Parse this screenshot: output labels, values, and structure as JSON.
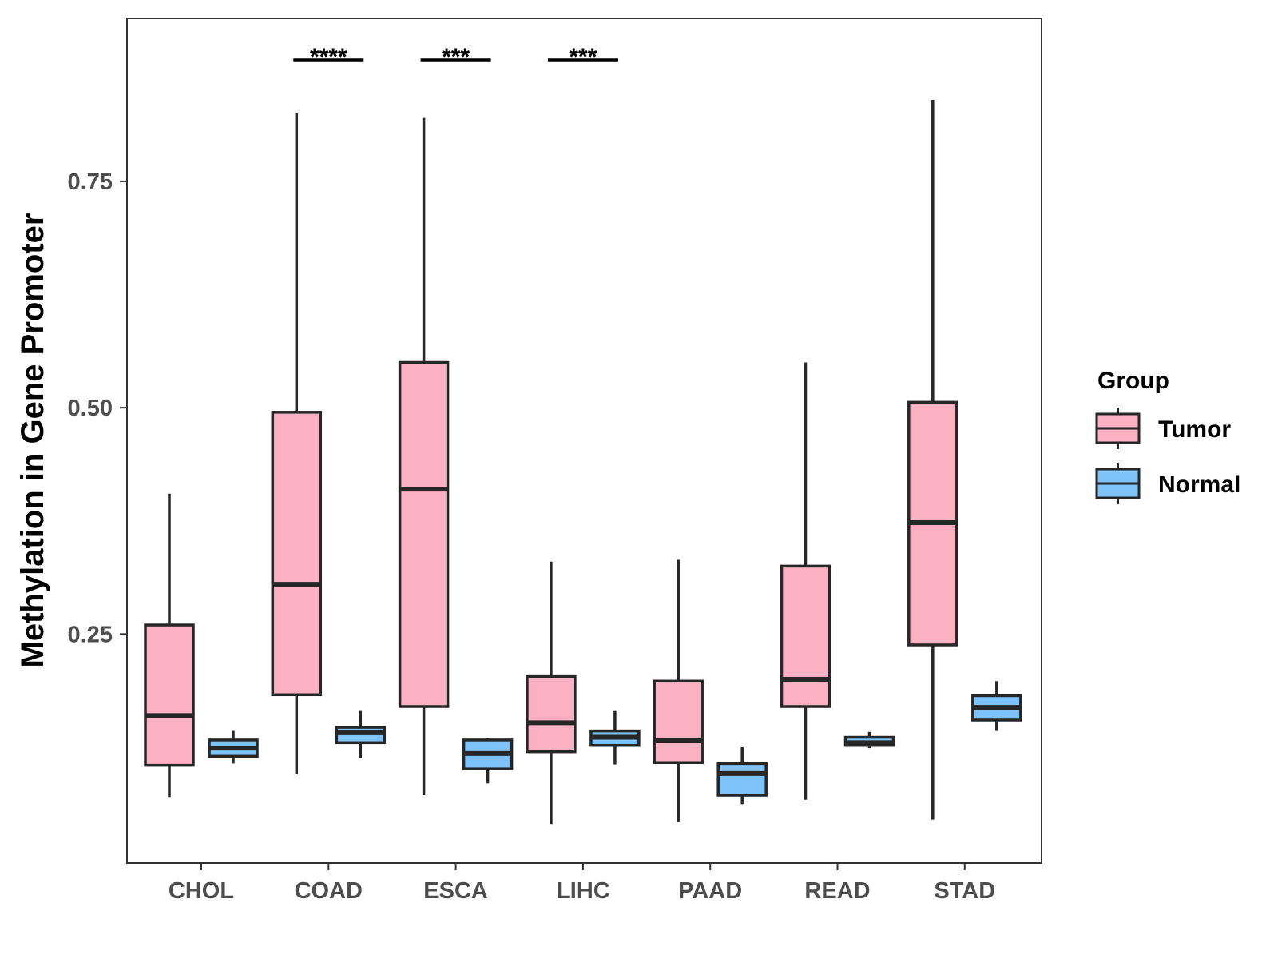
{
  "chart_data": {
    "type": "boxplot",
    "title": "",
    "xlabel": "",
    "ylabel": "Methylation in Gene Promoter",
    "ylim": [
      -0.003,
      0.93
    ],
    "y_ticks": [
      0.25,
      0.5,
      0.75
    ],
    "y_tick_labels": [
      "0.25",
      "0.50",
      "0.75"
    ],
    "categories": [
      "CHOL",
      "COAD",
      "ESCA",
      "LIHC",
      "PAAD",
      "READ",
      "STAD"
    ],
    "grid": false,
    "legend": {
      "title": "Group",
      "position": "right",
      "entries": [
        {
          "name": "Tumor",
          "color": "#FBB1C3"
        },
        {
          "name": "Normal",
          "color": "#7DC2F8"
        }
      ]
    },
    "series": [
      {
        "name": "Tumor",
        "color": "#FBB1C3",
        "boxes": [
          {
            "category": "CHOL",
            "whisker_low": 0.07,
            "q1": 0.105,
            "median": 0.16,
            "q3": 0.26,
            "whisker_high": 0.405
          },
          {
            "category": "COAD",
            "whisker_low": 0.095,
            "q1": 0.183,
            "median": 0.305,
            "q3": 0.495,
            "whisker_high": 0.825
          },
          {
            "category": "ESCA",
            "whisker_low": 0.072,
            "q1": 0.17,
            "median": 0.41,
            "q3": 0.55,
            "whisker_high": 0.82
          },
          {
            "category": "LIHC",
            "whisker_low": 0.04,
            "q1": 0.12,
            "median": 0.152,
            "q3": 0.203,
            "whisker_high": 0.33
          },
          {
            "category": "PAAD",
            "whisker_low": 0.043,
            "q1": 0.108,
            "median": 0.132,
            "q3": 0.198,
            "whisker_high": 0.332
          },
          {
            "category": "READ",
            "whisker_low": 0.067,
            "q1": 0.17,
            "median": 0.2,
            "q3": 0.325,
            "whisker_high": 0.55
          },
          {
            "category": "STAD",
            "whisker_low": 0.045,
            "q1": 0.238,
            "median": 0.373,
            "q3": 0.506,
            "whisker_high": 0.84
          }
        ]
      },
      {
        "name": "Normal",
        "color": "#7DC2F8",
        "boxes": [
          {
            "category": "CHOL",
            "whisker_low": 0.107,
            "q1": 0.115,
            "median": 0.124,
            "q3": 0.133,
            "whisker_high": 0.143
          },
          {
            "category": "COAD",
            "whisker_low": 0.113,
            "q1": 0.13,
            "median": 0.141,
            "q3": 0.147,
            "whisker_high": 0.165
          },
          {
            "category": "ESCA",
            "whisker_low": 0.085,
            "q1": 0.101,
            "median": 0.118,
            "q3": 0.133,
            "whisker_high": 0.135
          },
          {
            "category": "LIHC",
            "whisker_low": 0.106,
            "q1": 0.127,
            "median": 0.136,
            "q3": 0.143,
            "whisker_high": 0.165
          },
          {
            "category": "PAAD",
            "whisker_low": 0.062,
            "q1": 0.072,
            "median": 0.096,
            "q3": 0.107,
            "whisker_high": 0.125
          },
          {
            "category": "READ",
            "whisker_low": 0.124,
            "q1": 0.127,
            "median": 0.13,
            "q3": 0.136,
            "whisker_high": 0.142
          },
          {
            "category": "STAD",
            "whisker_low": 0.143,
            "q1": 0.155,
            "median": 0.169,
            "q3": 0.182,
            "whisker_high": 0.198
          }
        ]
      }
    ],
    "annotations": [
      {
        "category": "COAD",
        "text": "****",
        "y": 0.88
      },
      {
        "category": "ESCA",
        "text": "***",
        "y": 0.88
      },
      {
        "category": "LIHC",
        "text": "***",
        "y": 0.88
      }
    ]
  }
}
